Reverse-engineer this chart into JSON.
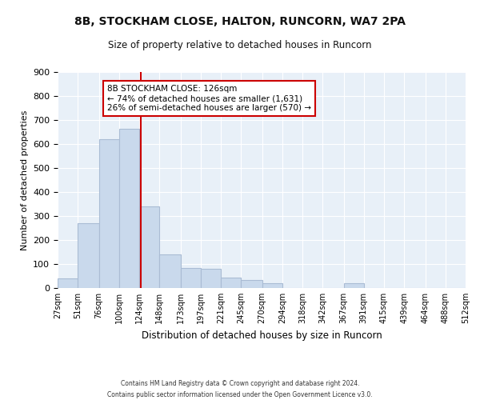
{
  "title1": "8B, STOCKHAM CLOSE, HALTON, RUNCORN, WA7 2PA",
  "title2": "Size of property relative to detached houses in Runcorn",
  "xlabel": "Distribution of detached houses by size in Runcorn",
  "ylabel": "Number of detached properties",
  "footer1": "Contains HM Land Registry data © Crown copyright and database right 2024.",
  "footer2": "Contains public sector information licensed under the Open Government Licence v3.0.",
  "annotation_line1": "8B STOCKHAM CLOSE: 126sqm",
  "annotation_line2": "← 74% of detached houses are smaller (1,631)",
  "annotation_line3": "26% of semi-detached houses are larger (570) →",
  "property_size": 126,
  "bar_color": "#c9d9ec",
  "bar_edge_color": "#aabcd4",
  "vline_color": "#cc0000",
  "bg_color": "#e8f0f8",
  "bin_edges": [
    27,
    51,
    76,
    100,
    124,
    148,
    173,
    197,
    221,
    245,
    270,
    294,
    318,
    342,
    367,
    391,
    415,
    439,
    464,
    488,
    512
  ],
  "bin_labels": [
    "27sqm",
    "51sqm",
    "76sqm",
    "100sqm",
    "124sqm",
    "148sqm",
    "173sqm",
    "197sqm",
    "221sqm",
    "245sqm",
    "270sqm",
    "294sqm",
    "318sqm",
    "342sqm",
    "367sqm",
    "391sqm",
    "415sqm",
    "439sqm",
    "464sqm",
    "488sqm",
    "512sqm"
  ],
  "counts": [
    40,
    270,
    620,
    665,
    340,
    140,
    85,
    80,
    45,
    35,
    20,
    0,
    0,
    0,
    20,
    0,
    0,
    0,
    0,
    0
  ],
  "ylim": [
    0,
    900
  ],
  "yticks": [
    0,
    100,
    200,
    300,
    400,
    500,
    600,
    700,
    800,
    900
  ]
}
